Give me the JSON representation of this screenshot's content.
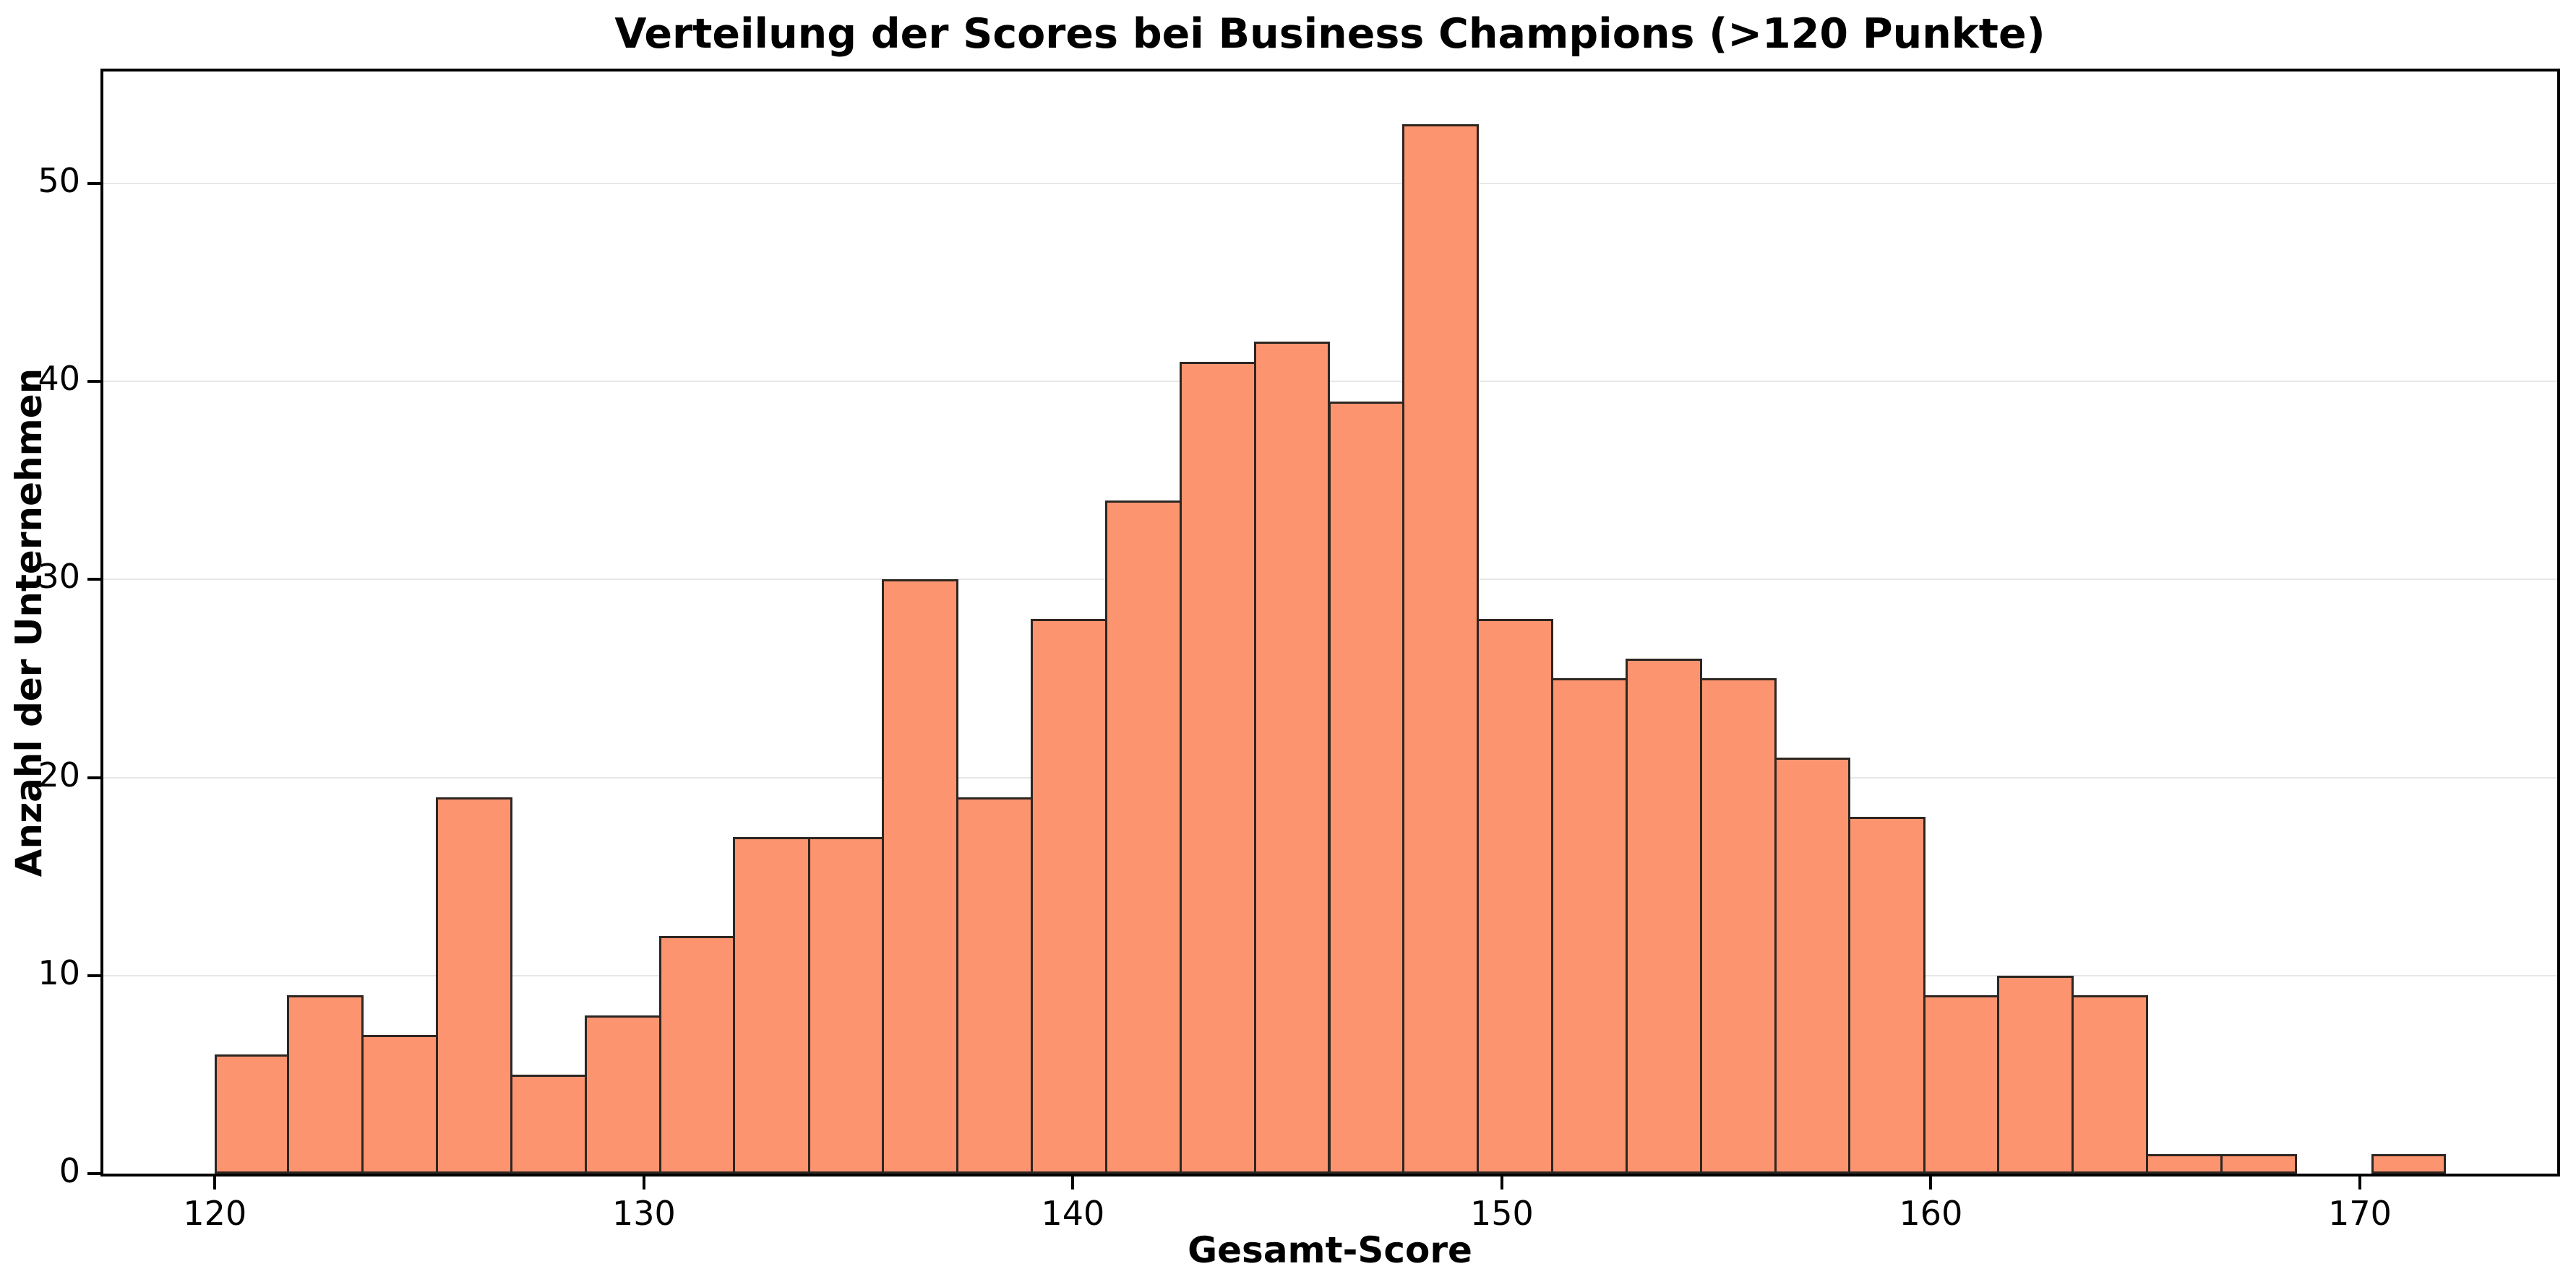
{
  "chart_data": {
    "type": "bar",
    "subtype": "histogram",
    "title": "Verteilung der Scores bei Business Champions (>120 Punkte)",
    "xlabel": "Gesamt-Score",
    "ylabel": "Anzahl der Unternehmen",
    "n_bins": 30,
    "bin_start": 120,
    "bin_width": 1.7333,
    "bin_edges": [
      120,
      121.73,
      123.47,
      125.2,
      126.93,
      128.67,
      130.4,
      132.13,
      133.87,
      135.6,
      137.33,
      139.07,
      140.8,
      142.53,
      144.27,
      146,
      147.73,
      149.47,
      151.2,
      152.93,
      154.67,
      156.4,
      158.13,
      159.87,
      161.6,
      163.33,
      165.07,
      166.8,
      168.53,
      170.27,
      172
    ],
    "counts": [
      6,
      9,
      7,
      19,
      5,
      8,
      12,
      17,
      17,
      30,
      19,
      28,
      34,
      41,
      42,
      39,
      53,
      28,
      25,
      26,
      25,
      21,
      18,
      9,
      10,
      9,
      1,
      1,
      0,
      1
    ],
    "xticks": [
      120,
      130,
      140,
      150,
      160,
      170
    ],
    "yticks": [
      0,
      10,
      20,
      30,
      40,
      50
    ],
    "xlim": [
      117.4,
      174.6
    ],
    "ylim": [
      0,
      55.65
    ],
    "grid": "horizontal",
    "legend": "none",
    "colors": {
      "bar_fill": "#FC9470",
      "bar_edge": "#2e2621",
      "grid": "#e7e7e7",
      "spine": "#000000",
      "background": "#ffffff",
      "text": "#000000"
    }
  }
}
